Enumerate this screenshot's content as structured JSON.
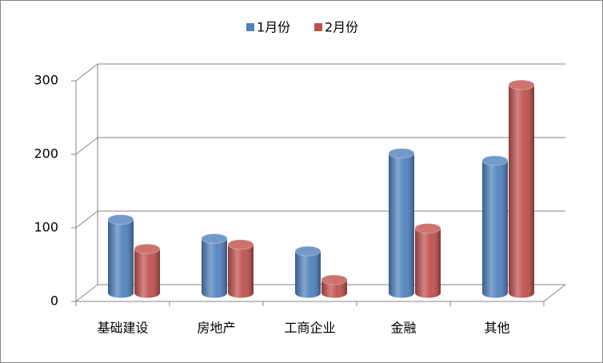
{
  "chart_data": {
    "type": "bar3d",
    "categories": [
      "基础建设",
      "房地产",
      "工商企业",
      "金融",
      "其他"
    ],
    "series": [
      {
        "name": "1月份",
        "color": "#4f81bd",
        "values": [
          100,
          74,
          57,
          190,
          180
        ]
      },
      {
        "name": "2月份",
        "color": "#c0504d",
        "values": [
          60,
          66,
          18,
          88,
          283
        ]
      }
    ],
    "ylim": [
      0,
      300
    ],
    "yticks": [
      0,
      100,
      200,
      300
    ],
    "grid": true,
    "legend": "top"
  }
}
